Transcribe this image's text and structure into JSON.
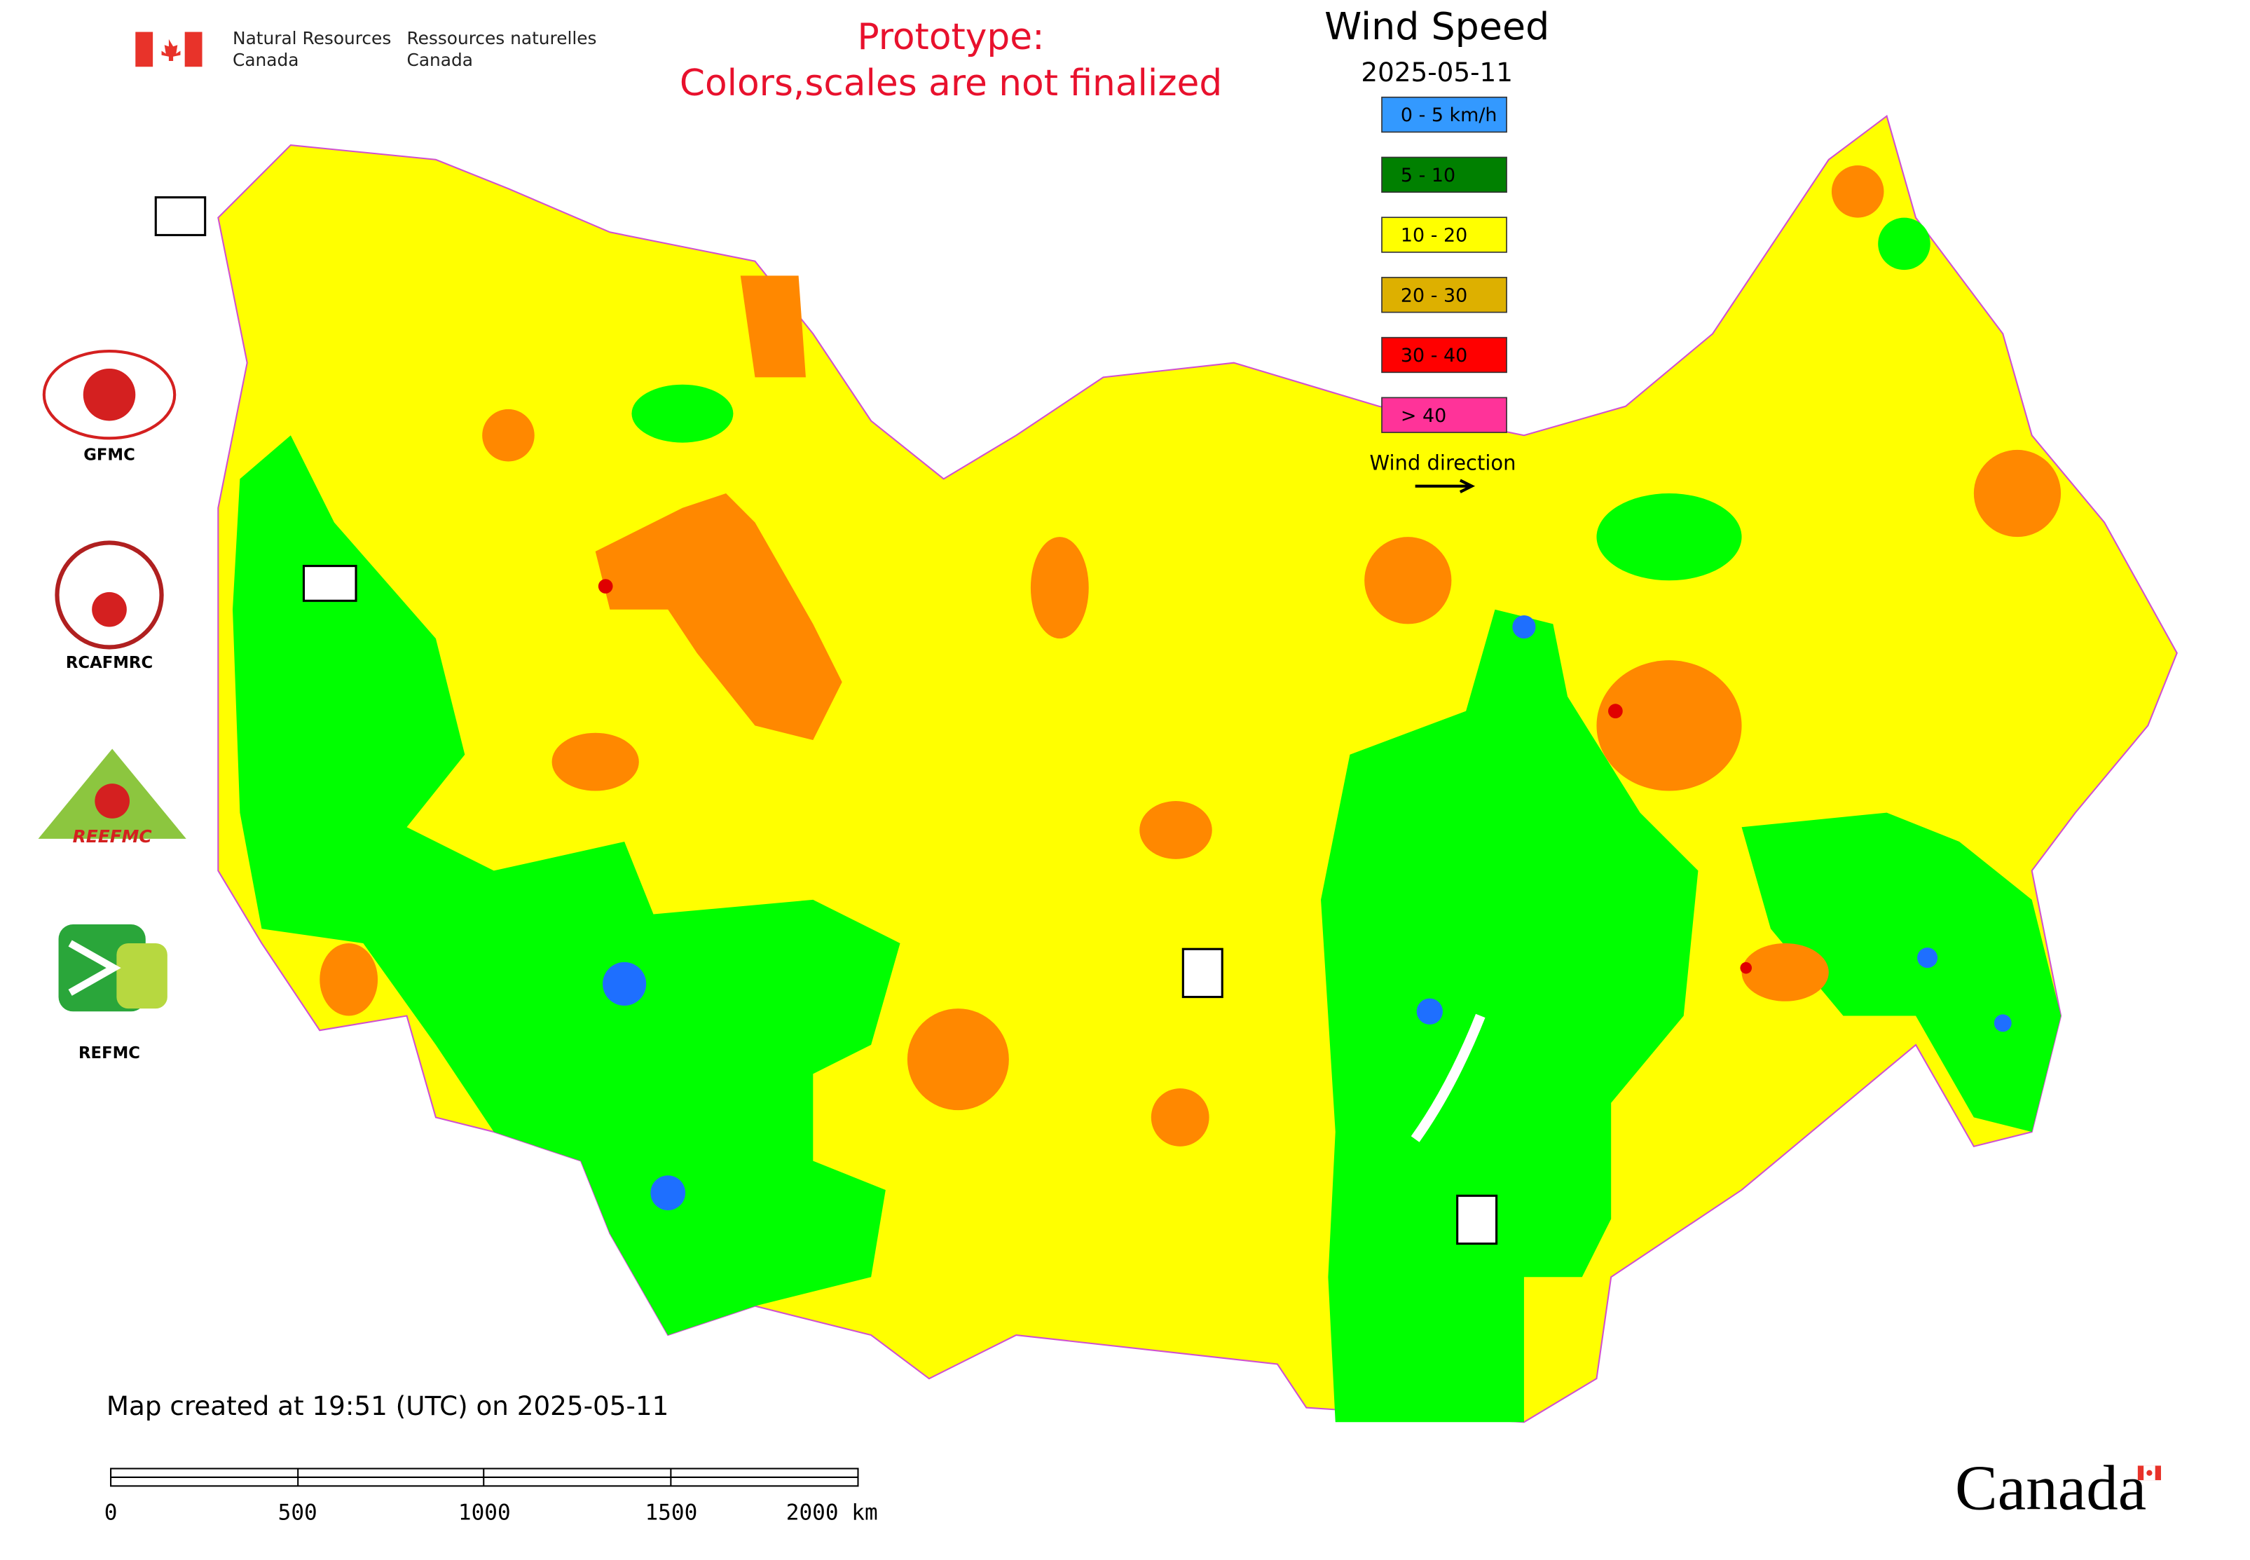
{
  "header": {
    "org_en": [
      "Natural Resources",
      "Canada"
    ],
    "org_fr": [
      "Ressources naturelles",
      "Canada"
    ],
    "notice": [
      "Prototype:",
      "Colors,scales are not finalized"
    ]
  },
  "legend": {
    "title": "Wind Speed",
    "date": "2025-05-11",
    "classes": [
      {
        "label": "0 - 5 km/h",
        "color": "#3399ff"
      },
      {
        "label": "5 - 10",
        "color": "#008000"
      },
      {
        "label": "10 - 20",
        "color": "#ffff00"
      },
      {
        "label": "20 - 30",
        "color": "#ddb000"
      },
      {
        "label": "30 - 40",
        "color": "#ff0000"
      },
      {
        "label": "> 40",
        "color": "#ff3399"
      }
    ],
    "direction": "Wind direction"
  },
  "logos": [
    "GFMC",
    "RCAFMRC",
    "REEFMC",
    "REFMC"
  ],
  "footer": {
    "created": "Map created at 19:51 (UTC) on 2025-05-11",
    "scale_labels": [
      "0",
      "500",
      "1000",
      "1500",
      "2000 km"
    ],
    "wordmark": "Canada"
  }
}
